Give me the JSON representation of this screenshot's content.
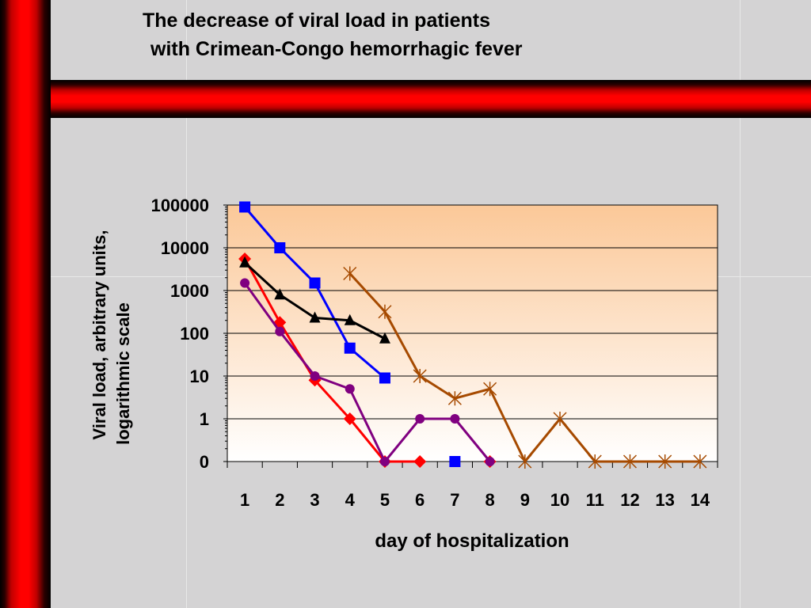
{
  "slide": {
    "title_line1": "The decrease of viral load in patients",
    "title_line2": "with Crimean-Congo hemorrhagic fever"
  },
  "chart_data": {
    "type": "line",
    "xlabel": "day of hospitalization",
    "ylabel_line1": "Viral load, arbitrary units,",
    "ylabel_line2": "logarithmic scale",
    "x_ticks": [
      1,
      2,
      3,
      4,
      5,
      6,
      7,
      8,
      9,
      10,
      11,
      12,
      13,
      14
    ],
    "y_scale": "log",
    "y_ticks": [
      "0",
      "1",
      "10",
      "100",
      "1000",
      "10000",
      "100000"
    ],
    "plot_background": "gradient #fbc898 (top) to #ffffff (bottom)",
    "grid": "horizontal",
    "legend": "none",
    "series": [
      {
        "color": "#0000ff",
        "marker": "square",
        "points": [
          [
            1,
            90000
          ],
          [
            2,
            10000
          ],
          [
            3,
            1500
          ],
          [
            4,
            45
          ],
          [
            5,
            9
          ]
        ]
      },
      {
        "color": "#0000ff",
        "marker": "square",
        "points": [
          [
            7,
            0
          ]
        ]
      },
      {
        "color": "#ff0000",
        "marker": "diamond",
        "points": [
          [
            1,
            5500
          ],
          [
            2,
            180
          ],
          [
            3,
            8
          ],
          [
            4,
            1
          ],
          [
            5,
            0
          ],
          [
            6,
            0
          ]
        ]
      },
      {
        "color": "#ff0000",
        "marker": "diamond",
        "points": [
          [
            8,
            0
          ]
        ]
      },
      {
        "color": "#000000",
        "marker": "triangle",
        "points": [
          [
            1,
            4500
          ],
          [
            2,
            800
          ],
          [
            3,
            230
          ],
          [
            4,
            200
          ],
          [
            5,
            75
          ]
        ]
      },
      {
        "color": "#800080",
        "marker": "circle",
        "points": [
          [
            1,
            1500
          ],
          [
            2,
            110
          ],
          [
            3,
            10
          ],
          [
            4,
            5
          ],
          [
            5,
            0
          ],
          [
            6,
            1
          ],
          [
            7,
            1
          ],
          [
            8,
            0
          ]
        ]
      },
      {
        "color": "#a64a00",
        "marker": "star",
        "points": [
          [
            4,
            2500
          ],
          [
            5,
            320
          ],
          [
            6,
            10
          ],
          [
            7,
            3
          ],
          [
            8,
            5
          ],
          [
            9,
            0
          ],
          [
            10,
            1
          ],
          [
            11,
            0
          ],
          [
            12,
            0
          ],
          [
            13,
            0
          ],
          [
            14,
            0
          ]
        ]
      }
    ]
  }
}
